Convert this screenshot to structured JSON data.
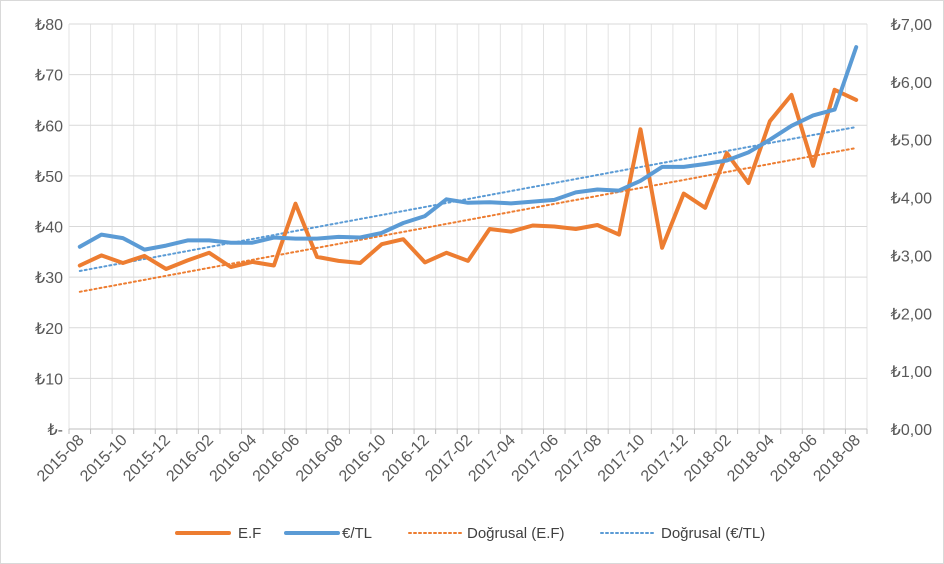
{
  "chart_data": {
    "type": "line",
    "title": "",
    "xlabel": "",
    "ylabel": "",
    "x_ticks": [
      "2015-08",
      "2015-10",
      "2015-12",
      "2016-02",
      "2016-04",
      "2016-06",
      "2016-08",
      "2016-10",
      "2016-12",
      "2017-02",
      "2017-04",
      "2017-06",
      "2017-08",
      "2017-10",
      "2017-12",
      "2018-02",
      "2018-04",
      "2018-06",
      "2018-08"
    ],
    "y_left": {
      "lim": [
        0,
        80
      ],
      "ticks": [
        0,
        10,
        20,
        30,
        40,
        50,
        60,
        70,
        80
      ],
      "tick_labels": [
        "₺-",
        "₺10",
        "₺20",
        "₺30",
        "₺40",
        "₺50",
        "₺60",
        "₺70",
        "₺80"
      ]
    },
    "y_right": {
      "lim": [
        0,
        7
      ],
      "ticks": [
        0,
        1,
        2,
        3,
        4,
        5,
        6,
        7
      ],
      "tick_labels": [
        "₺0,00",
        "₺1,00",
        "₺2,00",
        "₺3,00",
        "₺4,00",
        "₺5,00",
        "₺6,00",
        "₺7,00"
      ]
    },
    "grid": true,
    "legend_position": "bottom",
    "series": [
      {
        "name": "E.F",
        "axis": "left",
        "style": "solid",
        "color": "#ED7D31",
        "values": [
          32.3,
          34.3,
          32.8,
          34.2,
          31.6,
          33.3,
          34.8,
          32.0,
          33.0,
          32.3,
          44.5,
          34.0,
          33.2,
          32.8,
          36.5,
          37.5,
          32.9,
          34.8,
          33.2,
          39.5,
          39.0,
          40.2,
          40.0,
          39.5,
          40.3,
          38.4,
          59.2,
          35.8,
          46.5,
          43.7,
          54.5,
          48.6,
          60.8,
          66.0,
          52.0,
          67.0,
          65.0
        ]
      },
      {
        "name": "€/TL",
        "axis": "right",
        "style": "solid",
        "color": "#5B9BD5",
        "values": [
          3.15,
          3.36,
          3.3,
          3.1,
          3.17,
          3.26,
          3.26,
          3.22,
          3.22,
          3.31,
          3.29,
          3.29,
          3.32,
          3.31,
          3.39,
          3.56,
          3.68,
          3.97,
          3.91,
          3.92,
          3.9,
          3.93,
          3.96,
          4.09,
          4.14,
          4.12,
          4.29,
          4.53,
          4.53,
          4.58,
          4.64,
          4.78,
          5.0,
          5.24,
          5.42,
          5.52,
          6.6
        ]
      },
      {
        "name": "Doğrusal (E.F)",
        "axis": "left",
        "style": "dotted",
        "color": "#ED7D31",
        "values": [
          27.1,
          55.5
        ]
      },
      {
        "name": "Doğrusal (€/TL)",
        "axis": "right",
        "style": "dotted",
        "color": "#5B9BD5",
        "values": [
          2.73,
          5.22
        ]
      }
    ]
  }
}
